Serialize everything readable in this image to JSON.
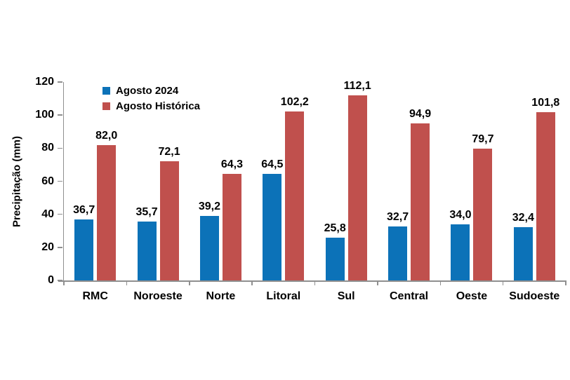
{
  "chart_data": {
    "type": "bar",
    "title": "",
    "xlabel": "",
    "ylabel": "Precipitação (mm)",
    "ylim": [
      0,
      120
    ],
    "yticks": [
      0,
      20,
      40,
      60,
      80,
      100,
      120
    ],
    "grid": false,
    "legend_position": "top-left-inside",
    "categories": [
      "RMC",
      "Noroeste",
      "Norte",
      "Litoral",
      "Sul",
      "Central",
      "Oeste",
      "Sudoeste"
    ],
    "series": [
      {
        "name": "Agosto 2024",
        "color": "#0C72B8",
        "values": [
          36.7,
          35.7,
          39.2,
          64.5,
          25.8,
          32.7,
          34.0,
          32.4
        ],
        "labels": [
          "36,7",
          "35,7",
          "39,2",
          "64,5",
          "25,8",
          "32,7",
          "34,0",
          "32,4"
        ]
      },
      {
        "name": "Agosto Histórica",
        "color": "#C0504D",
        "values": [
          82.0,
          72.1,
          64.3,
          102.2,
          112.1,
          94.9,
          79.7,
          101.8
        ],
        "labels": [
          "82,0",
          "72,1",
          "64,3",
          "102,2",
          "112,1",
          "94,9",
          "79,7",
          "101,8"
        ]
      }
    ],
    "colors": {
      "axis": "#8F8F8F",
      "label_text": "#000000",
      "background": "#FFFFFF"
    }
  }
}
